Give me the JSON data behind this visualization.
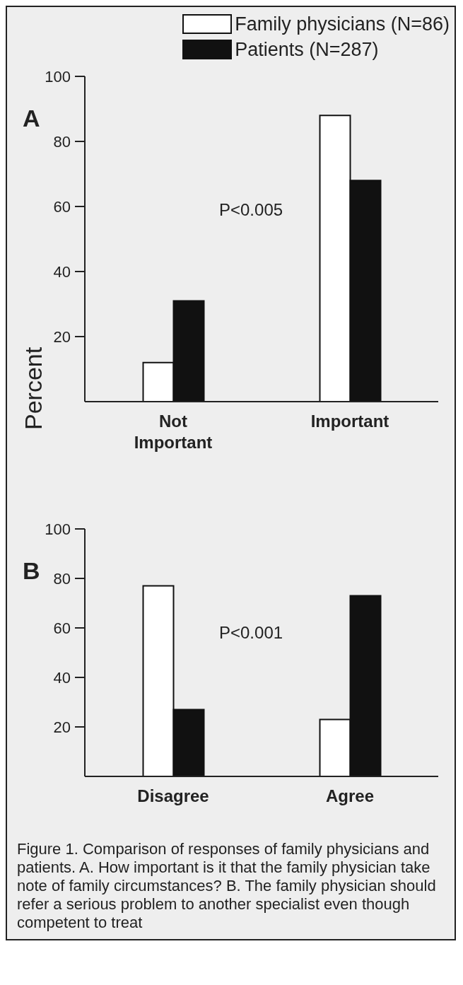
{
  "chart_data": [
    {
      "type": "bar",
      "title": "A",
      "ylabel": "Percent",
      "categories": [
        "Not Important",
        "Important"
      ],
      "series": [
        {
          "name": "Family physicians (N=86)",
          "color": "#ffffff",
          "values": [
            12,
            88
          ]
        },
        {
          "name": "Patients (N=287)",
          "color": "#111111",
          "values": [
            31,
            68
          ]
        }
      ],
      "ylim": [
        0,
        100
      ],
      "yticks": [
        20,
        40,
        60,
        80,
        100
      ],
      "legend": "top",
      "annotations": [
        "P<0.005"
      ]
    },
    {
      "type": "bar",
      "title": "B",
      "categories": [
        "Disagree",
        "Agree"
      ],
      "series": [
        {
          "color": "#ffffff",
          "values": [
            77,
            23
          ]
        },
        {
          "color": "#111111",
          "values": [
            27,
            73
          ]
        }
      ],
      "ylim": [
        0,
        100
      ],
      "yticks": [
        20,
        40,
        60,
        80,
        100
      ],
      "annotations": [
        "P<0.001",
        "Figure 1. Comparison of responses of family physicians and patients. A. How important is it that the family physician take note of family circumstances? B. The family physician should refer a serious problem to another specialist even though competent to treat"
      ]
    }
  ]
}
